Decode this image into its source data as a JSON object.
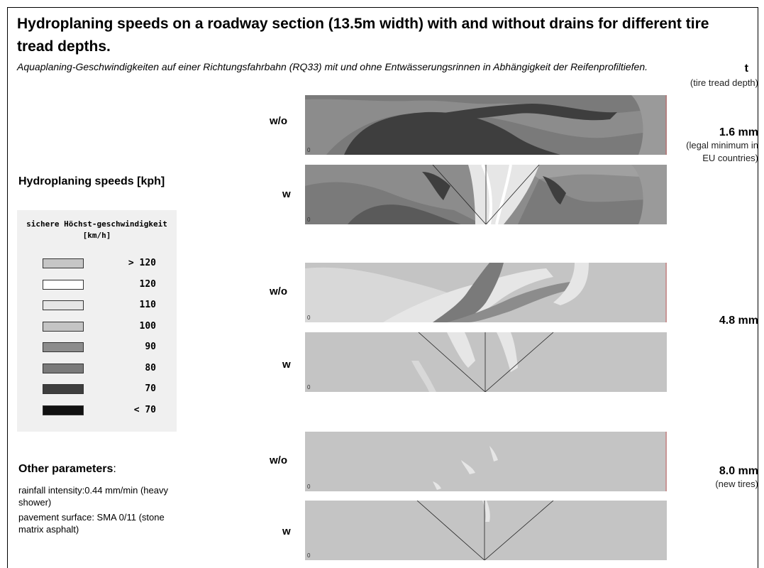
{
  "title": "Hydroplaning speeds on a roadway section (13.5m width)  with and without drains for different tire tread depths.",
  "subtitle": "Aquaplaning-Geschwindigkeiten auf einer Richtungsfahrbahn (RQ33) mit und ohne Entwässerungsrinnen in Abhängigkeit der Reifenprofiltiefen.",
  "tread_header": {
    "symbol": "t",
    "caption": "(tire tread depth)"
  },
  "tread_depths": [
    {
      "value": "1.6 mm",
      "note": "(legal minimum in EU countries)"
    },
    {
      "value": "4.8 mm",
      "note": ""
    },
    {
      "value": "8.0 mm",
      "note": "(new tires)"
    }
  ],
  "row_labels": {
    "without": "w/o",
    "with": "w"
  },
  "axis_zero": "0",
  "legend": {
    "heading": "Hydroplaning speeds [kph]",
    "title": "sichere Höchst-geschwindigkeit [km/h]",
    "items": [
      {
        "label": "> 120",
        "color": "#c6c6c6"
      },
      {
        "label": "120",
        "color": "#ffffff"
      },
      {
        "label": "110",
        "color": "#e6e6e6"
      },
      {
        "label": "100",
        "color": "#c4c4c4"
      },
      {
        "label": "90",
        "color": "#8c8c8c"
      },
      {
        "label": "80",
        "color": "#7a7a7a"
      },
      {
        "label": "70",
        "color": "#3e3e3e"
      },
      {
        "label": "< 70",
        "color": "#111111"
      }
    ]
  },
  "other": {
    "heading": "Other parameters",
    "colon": ":",
    "rainfall": "rainfall intensity:0.44 mm/min (heavy shower)",
    "pavement": "pavement surface: SMA 0/11 (stone matrix asphalt)"
  }
}
